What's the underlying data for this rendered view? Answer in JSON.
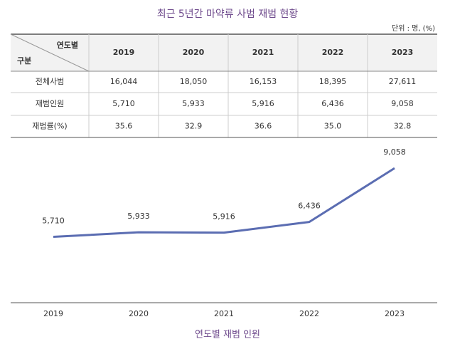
{
  "title": "최근 5년간 마약류 사범 재범 현황",
  "unit": "단위 : 명, (%)",
  "table": {
    "corner_col": "연도별",
    "corner_row": "구분",
    "columns": [
      "2019",
      "2020",
      "2021",
      "2022",
      "2023"
    ],
    "rows": [
      {
        "label": "전체사범",
        "cells": [
          "16,044",
          "18,050",
          "16,153",
          "18,395",
          "27,611"
        ]
      },
      {
        "label": "재범인원",
        "cells": [
          "5,710",
          "5,933",
          "5,916",
          "6,436",
          "9,058"
        ]
      },
      {
        "label": "재범률(%)",
        "cells": [
          "35.6",
          "32.9",
          "36.6",
          "35.0",
          "32.8"
        ]
      }
    ]
  },
  "chart_data": {
    "type": "line",
    "xlabel": "연도별 재범 인원",
    "categories": [
      "2019",
      "2020",
      "2021",
      "2022",
      "2023"
    ],
    "series": [
      {
        "color": "#5b6db2",
        "values": [
          5710,
          5933,
          5916,
          6436,
          9058
        ],
        "value_labels": [
          "5,710",
          "5,933",
          "5,916",
          "6,436",
          "9,058"
        ]
      }
    ],
    "ylim": [
      2500,
      10000
    ]
  }
}
